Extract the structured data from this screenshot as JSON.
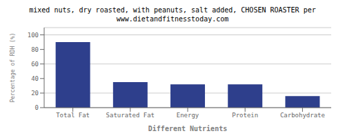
{
  "chart_data": {
    "type": "bar",
    "title": "mixed nuts, dry roasted, with peanuts, salt added, CHOSEN ROASTER per",
    "subtitle": "www.dietandfitnesstoday.com",
    "categories": [
      "Total Fat",
      "Saturated Fat",
      "Energy",
      "Protein",
      "Carbohydrate"
    ],
    "values": [
      90,
      35,
      32,
      32,
      16
    ],
    "color": "#2e3f8c",
    "xlabel": "Different Nutrients",
    "ylabel": "Percentage of RDH (%)",
    "ylim": [
      0,
      110
    ],
    "yticks": [
      0,
      20,
      40,
      60,
      80,
      100
    ],
    "grid": true
  }
}
